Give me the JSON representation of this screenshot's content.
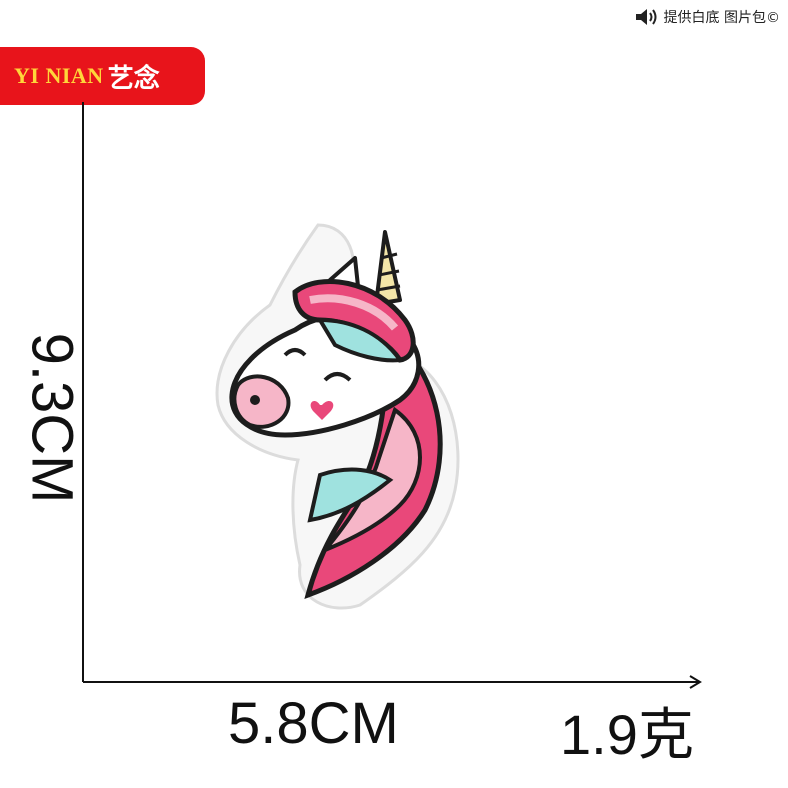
{
  "watermark": {
    "text": "提供白底 图片包©",
    "icon": "speaker-icon"
  },
  "brand": {
    "latin": "YI NIAN",
    "chinese": "艺念",
    "background": "#e8141b",
    "latin_color": "#ffd63a"
  },
  "dimensions": {
    "height": "9.3CM",
    "width": "5.8CM",
    "weight": "1.9克"
  },
  "product": {
    "subject": "unicorn-patch",
    "colors": {
      "pink": "#e9487a",
      "light_pink": "#f6b6c8",
      "mint": "#9fe2df",
      "outline": "#1d1d1d",
      "horn": "#f3e6a8"
    }
  }
}
